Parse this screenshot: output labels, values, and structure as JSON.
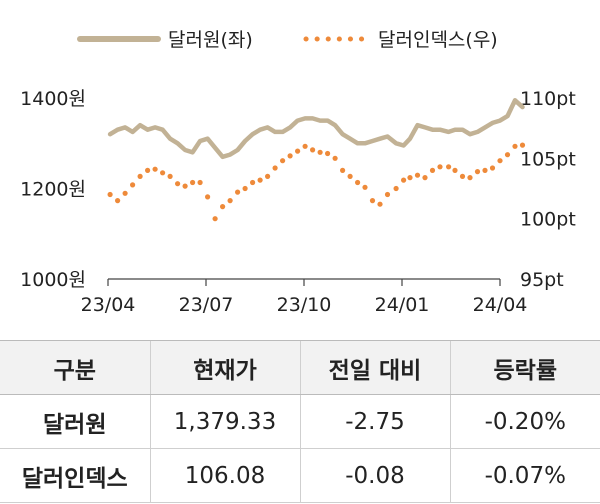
{
  "chart_data": {
    "type": "line",
    "legend_position": "top",
    "grid": false,
    "x_ticks": [
      "23/04",
      "23/07",
      "23/10",
      "24/01",
      "24/04"
    ],
    "y_left": {
      "ticks": [
        "1400원",
        "1200원",
        "1000원"
      ],
      "ylim": [
        1000,
        1400
      ]
    },
    "y_right": {
      "ticks": [
        "110pt",
        "105pt",
        "100pt",
        "95pt"
      ],
      "ylim": [
        95,
        110
      ]
    },
    "series": [
      {
        "name": "달러원(좌)",
        "axis": "left",
        "style": "solid",
        "color": "#c2b295",
        "x": [
          "2023-04-03",
          "2023-04-10",
          "2023-04-17",
          "2023-04-24",
          "2023-05-01",
          "2023-05-08",
          "2023-05-15",
          "2023-05-22",
          "2023-05-29",
          "2023-06-05",
          "2023-06-12",
          "2023-06-19",
          "2023-06-26",
          "2023-07-03",
          "2023-07-10",
          "2023-07-17",
          "2023-07-24",
          "2023-07-31",
          "2023-08-07",
          "2023-08-14",
          "2023-08-21",
          "2023-08-28",
          "2023-09-04",
          "2023-09-11",
          "2023-09-18",
          "2023-09-25",
          "2023-10-02",
          "2023-10-09",
          "2023-10-16",
          "2023-10-23",
          "2023-10-30",
          "2023-11-06",
          "2023-11-13",
          "2023-11-20",
          "2023-11-27",
          "2023-12-04",
          "2023-12-11",
          "2023-12-18",
          "2023-12-26",
          "2024-01-02",
          "2024-01-08",
          "2024-01-15",
          "2024-01-22",
          "2024-01-29",
          "2024-02-05",
          "2024-02-13",
          "2024-02-19",
          "2024-02-26",
          "2024-03-04",
          "2024-03-11",
          "2024-03-18",
          "2024-03-25",
          "2024-04-01",
          "2024-04-08",
          "2024-04-15",
          "2024-04-22"
        ],
        "values": [
          1320,
          1330,
          1335,
          1325,
          1340,
          1330,
          1335,
          1330,
          1310,
          1300,
          1285,
          1280,
          1305,
          1310,
          1290,
          1270,
          1275,
          1285,
          1305,
          1320,
          1330,
          1335,
          1325,
          1325,
          1335,
          1350,
          1355,
          1355,
          1350,
          1350,
          1340,
          1320,
          1310,
          1300,
          1300,
          1305,
          1310,
          1315,
          1300,
          1295,
          1310,
          1340,
          1335,
          1330,
          1330,
          1325,
          1330,
          1330,
          1320,
          1325,
          1335,
          1345,
          1350,
          1360,
          1395,
          1380
        ]
      },
      {
        "name": "달러인덱스(우)",
        "axis": "right",
        "style": "dotted",
        "color": "#ee8a3a",
        "x": [
          "2023-04-03",
          "2023-04-10",
          "2023-04-17",
          "2023-04-24",
          "2023-05-01",
          "2023-05-08",
          "2023-05-15",
          "2023-05-22",
          "2023-05-29",
          "2023-06-05",
          "2023-06-12",
          "2023-06-19",
          "2023-06-26",
          "2023-07-03",
          "2023-07-10",
          "2023-07-17",
          "2023-07-24",
          "2023-07-31",
          "2023-08-07",
          "2023-08-14",
          "2023-08-21",
          "2023-08-28",
          "2023-09-04",
          "2023-09-11",
          "2023-09-18",
          "2023-09-25",
          "2023-10-02",
          "2023-10-09",
          "2023-10-16",
          "2023-10-23",
          "2023-10-30",
          "2023-11-06",
          "2023-11-13",
          "2023-11-20",
          "2023-11-27",
          "2023-12-04",
          "2023-12-11",
          "2023-12-18",
          "2023-12-26",
          "2024-01-02",
          "2024-01-08",
          "2024-01-15",
          "2024-01-22",
          "2024-01-29",
          "2024-02-05",
          "2024-02-13",
          "2024-02-19",
          "2024-02-26",
          "2024-03-04",
          "2024-03-11",
          "2024-03-18",
          "2024-03-25",
          "2024-04-01",
          "2024-04-08",
          "2024-04-15",
          "2024-04-22"
        ],
        "values": [
          102,
          101.5,
          102.1,
          102.8,
          103.5,
          104.0,
          104.1,
          103.8,
          103.5,
          102.9,
          102.7,
          103.0,
          103.0,
          101.8,
          100.0,
          101.0,
          101.5,
          102.2,
          102.5,
          103.0,
          103.2,
          103.5,
          104.2,
          104.8,
          105.2,
          105.6,
          106.0,
          105.7,
          105.5,
          105.4,
          105.0,
          104.0,
          103.5,
          103.0,
          102.6,
          101.5,
          101.2,
          102.0,
          102.5,
          103.2,
          103.4,
          103.6,
          103.4,
          104.0,
          104.3,
          104.3,
          104.0,
          103.5,
          103.4,
          103.9,
          104.0,
          104.2,
          104.8,
          105.3,
          106.0,
          106.1
        ]
      }
    ]
  },
  "table": {
    "headers": [
      "구분",
      "현재가",
      "전일 대비",
      "등락률"
    ],
    "rows": [
      [
        "달러원",
        "1,379.33",
        "-2.75",
        "-0.20%"
      ],
      [
        "달러인덱스",
        "106.08",
        "-0.08",
        "-0.07%"
      ]
    ]
  }
}
